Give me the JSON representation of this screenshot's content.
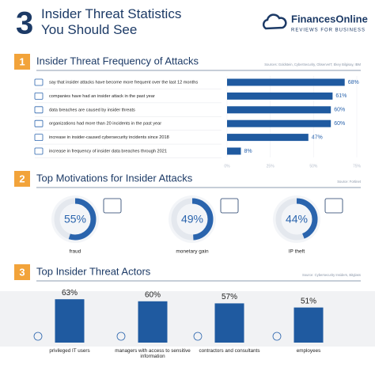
{
  "header": {
    "number": "3",
    "title": "Insider Threat Statistics You Should See",
    "brand": "FinancesOnline",
    "tagline": "REVIEWS FOR BUSINESS"
  },
  "chart_data": [
    {
      "type": "hbar",
      "number": "1",
      "title": "Insider Threat Frequency of Attacks",
      "source": "Sources: Goldstein, CyberSecurity, ObserveIT, Ekey Bilgisay, IBM",
      "categories": [
        "say that insider attacks have become more frequent over the last 12 months",
        "companies have had an insider attack in the past year",
        "data breaches are caused by insider threats",
        "organizations had more than 20 incidents in the past year",
        "increase in insider-caused cybersecurity incidents since 2018",
        "increase in frequency of insider data breaches through 2021"
      ],
      "values": [
        68,
        61,
        60,
        60,
        47,
        8
      ],
      "value_labels": [
        "68%",
        "61%",
        "60%",
        "60%",
        "47%",
        "8%"
      ],
      "xlim": [
        0,
        75
      ],
      "xticks": [
        {
          "value": 0,
          "label": "0%"
        },
        {
          "value": 25,
          "label": "25%"
        },
        {
          "value": 50,
          "label": "50%"
        },
        {
          "value": 75,
          "label": "75%"
        }
      ],
      "color": "#1f5aa0"
    },
    {
      "type": "donut",
      "number": "2",
      "title": "Top Motivations for Insider Attacks",
      "source": "Source: Fortinet",
      "categories": [
        "fraud",
        "monetary gain",
        "IP theft"
      ],
      "values": [
        55,
        49,
        44
      ],
      "value_labels": [
        "55%",
        "49%",
        "44%"
      ],
      "color": "#2a64ad"
    },
    {
      "type": "column",
      "number": "3",
      "title": "Top Insider Threat Actors",
      "source": "Source: Cybersecurity Insiders, Bitglass",
      "categories": [
        "privileged IT users",
        "managers with access to sensitive information",
        "contractors and consultants",
        "employees"
      ],
      "values": [
        63,
        60,
        57,
        51
      ],
      "value_labels": [
        "63%",
        "60%",
        "57%",
        "51%"
      ],
      "color": "#1f5aa0"
    }
  ]
}
